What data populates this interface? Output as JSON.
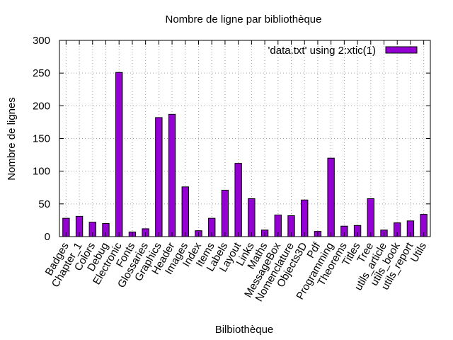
{
  "chart_data": {
    "type": "bar",
    "title": "Nombre de ligne par bibliothèque",
    "xlabel": "Bilbiothèque",
    "ylabel": "Nombre de lignes",
    "ylim": [
      0,
      300
    ],
    "yticks": [
      "0",
      "50",
      "100",
      "150",
      "200",
      "250",
      "300"
    ],
    "grid": true,
    "legend_position": "top-right",
    "categories": [
      "Badges",
      "Chapter_1",
      "Colors",
      "Debug",
      "Electronic",
      "Fonts",
      "Glossaries",
      "Graphics",
      "Header",
      "Images",
      "Index",
      "Items",
      "Labels",
      "Layout",
      "Links",
      "Maths",
      "MessageBox",
      "Nomenclature",
      "Objects3D",
      "Pdf",
      "Programming",
      "Theorems",
      "Titles",
      "Tree",
      "utils_article",
      "utils_book",
      "utils_report",
      "Utils"
    ],
    "series": [
      {
        "name": "'data.txt' using 2:xtic(1)",
        "color": "#9400d3",
        "values": [
          28,
          31,
          22,
          20,
          251,
          7,
          12,
          182,
          187,
          76,
          9,
          28,
          71,
          112,
          58,
          10,
          33,
          32,
          56,
          8,
          120,
          16,
          17,
          58,
          10,
          21,
          24,
          34
        ]
      }
    ]
  }
}
